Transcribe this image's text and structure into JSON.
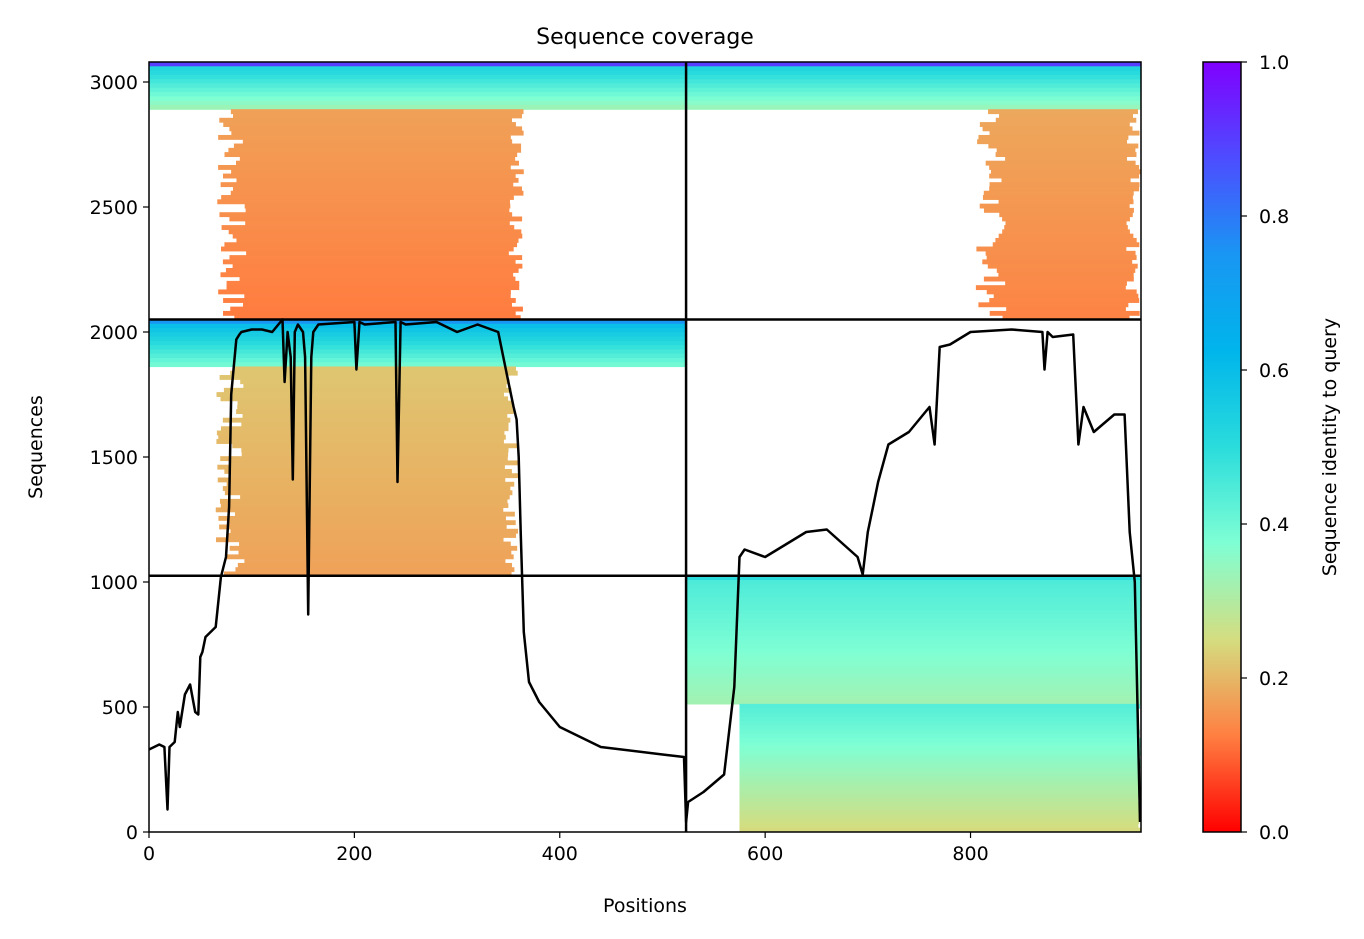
{
  "chart_data": {
    "type": "heatmap",
    "title": "Sequence coverage",
    "xlabel": "Positions",
    "ylabel": "Sequences",
    "xlim": [
      0,
      966
    ],
    "ylim": [
      0,
      3080
    ],
    "x_ticks": [
      0,
      200,
      400,
      600,
      800
    ],
    "y_ticks": [
      0,
      500,
      1000,
      1500,
      2000,
      2500,
      3000
    ],
    "grid": false,
    "colormap": "rainbow_r",
    "colorbar": {
      "label": "Sequence identity to query",
      "range": [
        0,
        1
      ],
      "ticks": [
        0.0,
        0.2,
        0.4,
        0.6,
        0.8,
        1.0
      ],
      "colors": [
        "#ff0000",
        "#ff7f41",
        "#d4dd80",
        "#7fffd4",
        "#2adcdc",
        "#00b5eb",
        "#1996f3",
        "#4d4dff",
        "#8000ff"
      ]
    },
    "chain_boundaries": {
      "positions": [
        523
      ],
      "sequences": [
        1025,
        2050
      ]
    },
    "blocks": [
      {
        "x": [
          0,
          523
        ],
        "y": [
          2050,
          3080
        ],
        "top_identity": 0.9,
        "band_identity": 0.55,
        "bulk_identity": 0.17,
        "band_rows": 180,
        "bulk_range": [
          80,
          365
        ]
      },
      {
        "x": [
          523,
          966
        ],
        "y": [
          2050,
          3080
        ],
        "top_identity": 0.9,
        "band_identity": 0.55,
        "bulk_identity": 0.18,
        "band_rows": 180,
        "bulk_range": [
          820,
          966
        ]
      },
      {
        "x": [
          0,
          523
        ],
        "y": [
          1025,
          2050
        ],
        "top_identity": 0.75,
        "band_identity": 0.62,
        "bulk_identity": 0.22,
        "band_rows": 180,
        "bulk_range": [
          80,
          360
        ]
      },
      {
        "x": [
          523,
          966
        ],
        "y": [
          0,
          1025
        ],
        "top_identity": 0.5,
        "band_identity": 0.45,
        "bulk_identity": 0.24,
        "band_rows": 500,
        "bulk_range": [
          575,
          966
        ]
      }
    ],
    "series": [
      {
        "x": [
          0,
          10,
          15,
          18,
          20,
          25,
          28,
          30,
          35,
          40,
          45,
          48,
          50,
          52,
          55,
          60,
          65,
          70,
          75,
          78,
          80,
          85,
          88,
          90,
          100,
          110,
          120,
          130,
          132,
          135,
          138,
          140,
          142,
          145,
          150,
          152,
          155,
          158,
          160,
          165,
          200,
          202,
          205,
          210,
          240,
          242,
          245,
          250,
          280,
          300,
          320,
          340,
          345,
          350,
          355,
          358,
          360,
          362,
          365,
          370,
          380,
          400,
          440,
          500,
          521,
          523,
          525,
          540,
          560,
          570,
          575,
          580,
          600,
          620,
          640,
          660,
          690,
          695,
          700,
          705,
          710,
          720,
          740,
          760,
          765,
          770,
          780,
          800,
          840,
          870,
          872,
          875,
          880,
          900,
          905,
          910,
          920,
          940,
          950,
          955,
          960,
          965
        ],
        "y": [
          330,
          350,
          340,
          90,
          340,
          360,
          480,
          420,
          550,
          590,
          480,
          470,
          700,
          720,
          780,
          800,
          820,
          1020,
          1100,
          1300,
          1750,
          1970,
          1990,
          2000,
          2010,
          2010,
          2000,
          2050,
          1800,
          2000,
          1900,
          1410,
          2000,
          2030,
          2000,
          1900,
          870,
          1900,
          2000,
          2030,
          2040,
          1850,
          2040,
          2030,
          2040,
          1400,
          2040,
          2030,
          2040,
          2000,
          2030,
          2000,
          1900,
          1800,
          1700,
          1650,
          1500,
          1200,
          800,
          600,
          520,
          420,
          340,
          310,
          300,
          40,
          120,
          160,
          230,
          580,
          1100,
          1130,
          1100,
          1150,
          1200,
          1210,
          1100,
          1030,
          1200,
          1300,
          1400,
          1550,
          1600,
          1700,
          1550,
          1940,
          1950,
          2000,
          2010,
          2000,
          1850,
          2000,
          1980,
          1990,
          1550,
          1700,
          1600,
          1670,
          1670,
          1200,
          1000,
          40
        ]
      }
    ]
  }
}
